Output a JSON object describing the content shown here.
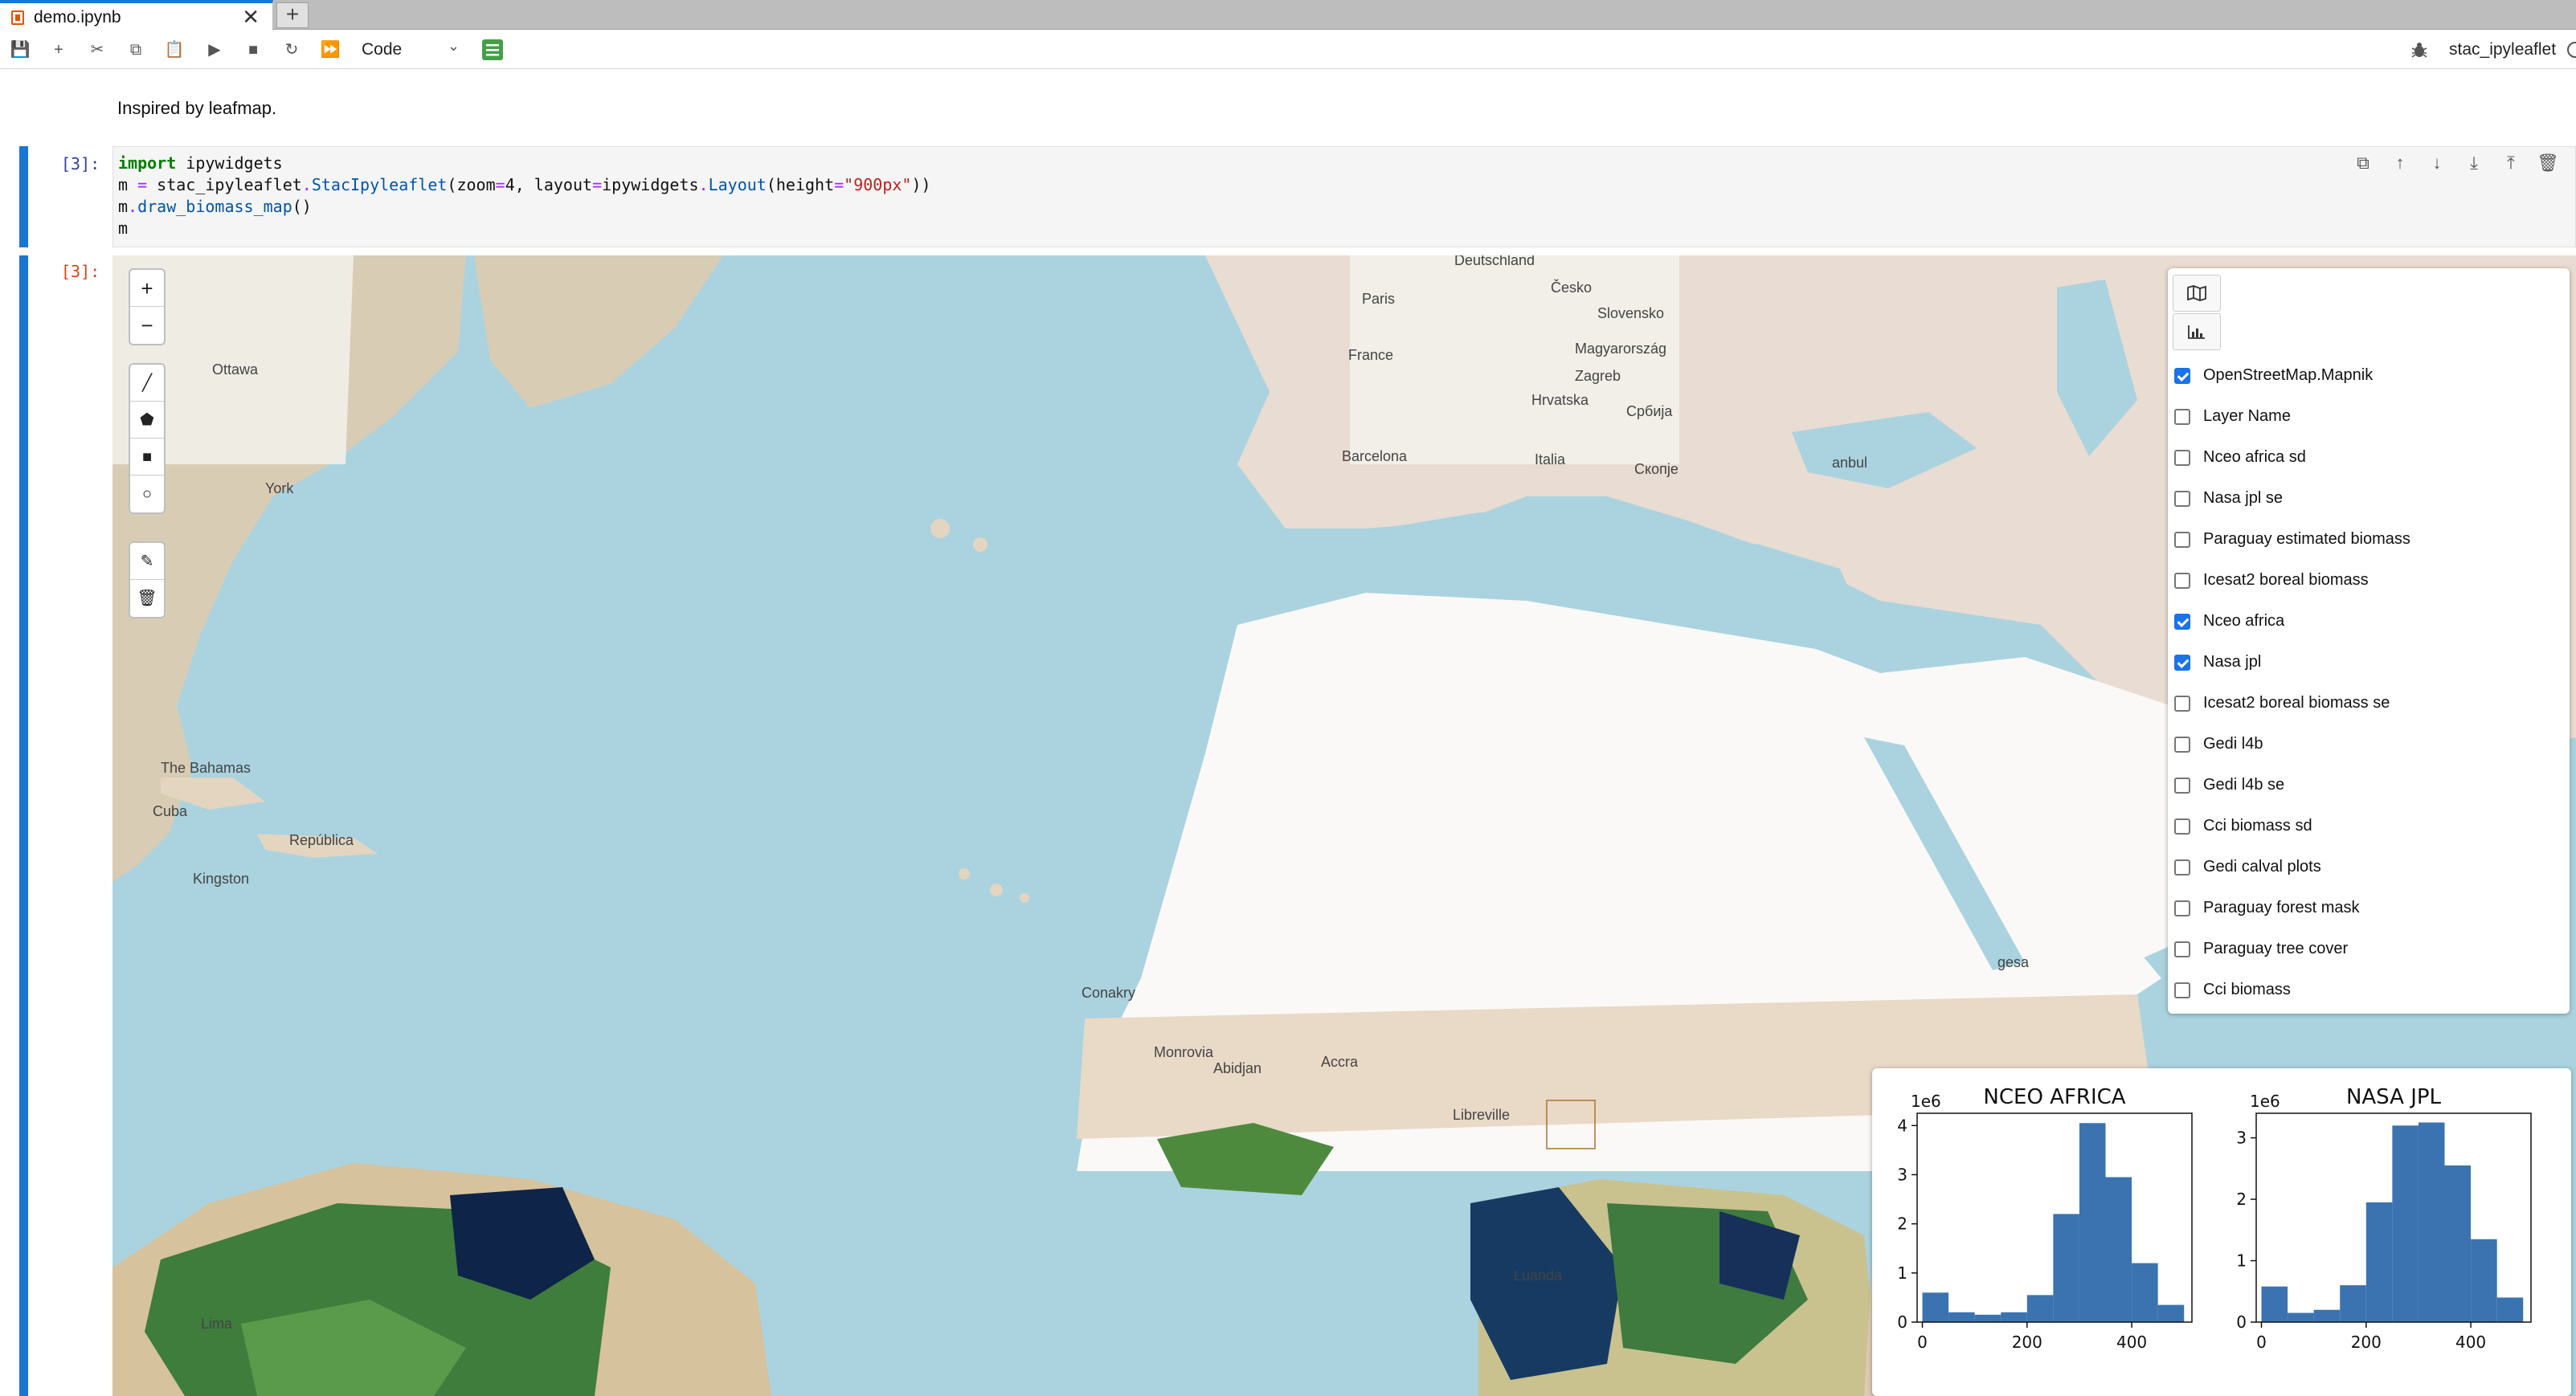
{
  "tab": {
    "name": "demo.ipynb",
    "close_glyph": "✕",
    "new_glyph": "+"
  },
  "toolbar": {
    "icons": [
      "save-icon",
      "add-icon",
      "cut-icon",
      "copy-icon",
      "paste-icon",
      "run-icon",
      "stop-icon",
      "restart-icon",
      "fast-forward-icon"
    ],
    "glyphs": [
      "💾",
      "+",
      "✂",
      "⧉",
      "📋",
      "▶",
      "■",
      "↻",
      "⏩"
    ],
    "cell_type": "Code",
    "kernel_name": "stac_ipyleaflet"
  },
  "markdown_text": "Inspired by leafmap.",
  "code_cell": {
    "prompt": "[3]:",
    "output_prompt": "[3]:",
    "lines": [
      "import ipywidgets",
      "m = stac_ipyleaflet.StacIpyleaflet(zoom=4, layout=ipywidgets.Layout(height=\"900px\"))",
      "m.draw_biomass_map()",
      "m"
    ],
    "actions": [
      "⧉",
      "↑",
      "↓",
      "⤓",
      "⤒",
      "🗑"
    ]
  },
  "map": {
    "zoom_controls": [
      "+",
      "−"
    ],
    "draw_tools": [
      "╱",
      "⬟",
      "■",
      "○"
    ],
    "edit_tools": [
      "✎",
      "🗑"
    ],
    "labels": [
      {
        "text": "Ottawa"
      },
      {
        "text": "York"
      },
      {
        "text": "The Bahamas"
      },
      {
        "text": "Cuba"
      },
      {
        "text": "Kingston"
      },
      {
        "text": "República"
      },
      {
        "text": "Paris"
      },
      {
        "text": "France"
      },
      {
        "text": "Deutschland"
      },
      {
        "text": "Česko"
      },
      {
        "text": "Slovensko"
      },
      {
        "text": "Magyarország"
      },
      {
        "text": "Zagreb"
      },
      {
        "text": "Hrvatska"
      },
      {
        "text": "Србија"
      },
      {
        "text": "Barcelona"
      },
      {
        "text": "Italia"
      },
      {
        "text": "Скопје"
      },
      {
        "text": "anbul"
      },
      {
        "text": "Conakry"
      },
      {
        "text": "Monrovia"
      },
      {
        "text": "Abidjan"
      },
      {
        "text": "Accra"
      },
      {
        "text": "Libreville"
      },
      {
        "text": "Luanda"
      },
      {
        "text": "gesa"
      },
      {
        "text": "Lima"
      }
    ]
  },
  "layers": {
    "items": [
      {
        "label": "OpenStreetMap.Mapnik",
        "checked": true
      },
      {
        "label": "Layer Name",
        "checked": false
      },
      {
        "label": "Nceo africa sd",
        "checked": false
      },
      {
        "label": "Nasa jpl se",
        "checked": false
      },
      {
        "label": "Paraguay estimated biomass",
        "checked": false
      },
      {
        "label": "Icesat2 boreal biomass",
        "checked": false
      },
      {
        "label": "Nceo africa",
        "checked": true
      },
      {
        "label": "Nasa jpl",
        "checked": true
      },
      {
        "label": "Icesat2 boreal biomass se",
        "checked": false
      },
      {
        "label": "Gedi l4b",
        "checked": false
      },
      {
        "label": "Gedi l4b se",
        "checked": false
      },
      {
        "label": "Cci biomass sd",
        "checked": false
      },
      {
        "label": "Gedi calval plots",
        "checked": false
      },
      {
        "label": "Paraguay forest mask",
        "checked": false
      },
      {
        "label": "Paraguay tree cover",
        "checked": false
      },
      {
        "label": "Cci biomass",
        "checked": false
      }
    ]
  },
  "colors": {
    "accent": "#1976d2",
    "bar": "#3a73b0",
    "sea": "#aad3df"
  },
  "chart_data": [
    {
      "type": "bar",
      "title": "NCEO AFRICA",
      "multiplier_label": "1e6",
      "bin_edges": [
        0,
        50,
        100,
        150,
        200,
        250,
        300,
        350,
        400,
        450,
        500
      ],
      "values": [
        0.6,
        0.2,
        0.15,
        0.2,
        0.55,
        2.2,
        4.05,
        2.95,
        1.2,
        0.35
      ],
      "xticks": [
        0,
        200,
        400
      ],
      "yticks": [
        0,
        1,
        2,
        3,
        4
      ],
      "xlim": [
        -10,
        515
      ],
      "ylim": [
        0,
        4.25
      ]
    },
    {
      "type": "bar",
      "title": "NASA JPL",
      "multiplier_label": "1e6",
      "bin_edges": [
        0,
        50,
        100,
        150,
        200,
        250,
        300,
        350,
        400,
        450,
        500
      ],
      "values": [
        0.58,
        0.15,
        0.2,
        0.6,
        1.95,
        3.2,
        3.25,
        2.55,
        1.35,
        0.4
      ],
      "xticks": [
        0,
        200,
        400
      ],
      "yticks": [
        0,
        1,
        2,
        3
      ],
      "xlim": [
        -10,
        515
      ],
      "ylim": [
        0,
        3.4
      ]
    }
  ]
}
